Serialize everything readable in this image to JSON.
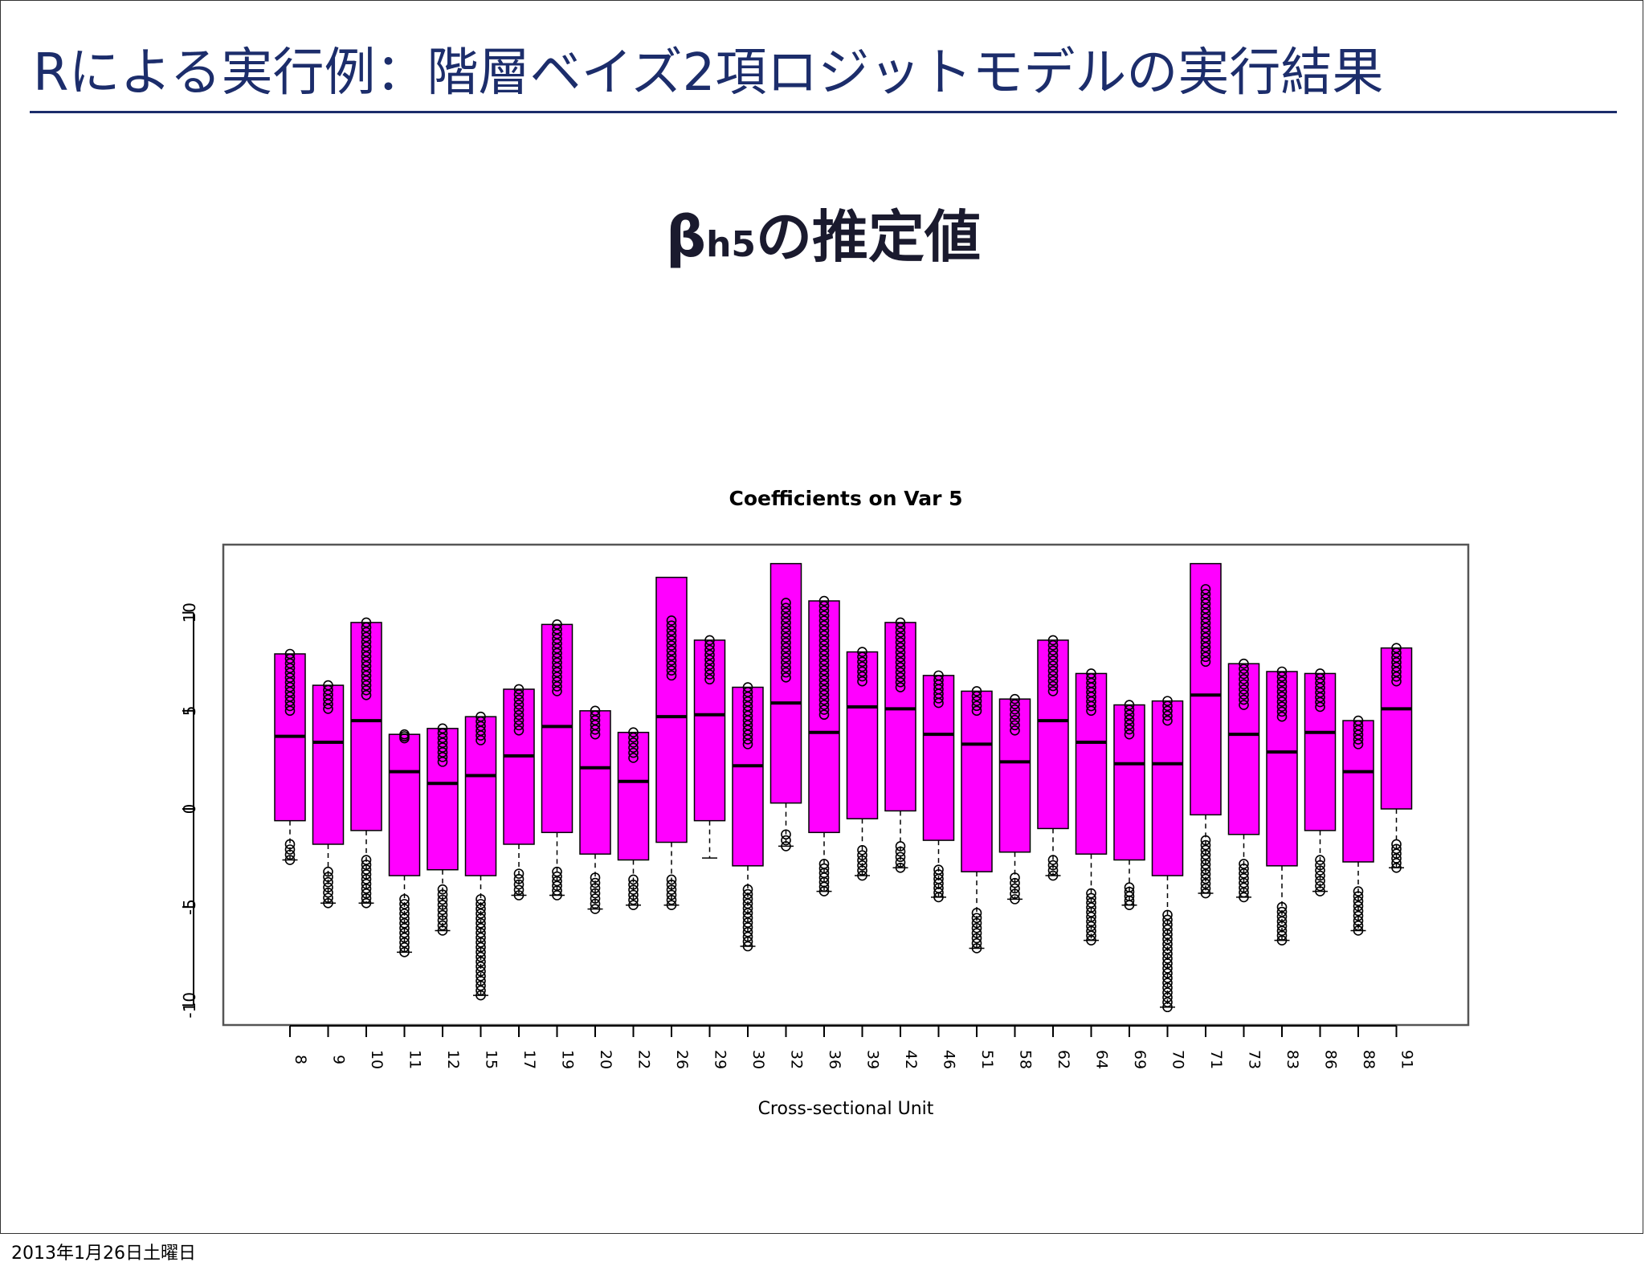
{
  "slide": {
    "title": "Rによる実行例：階層ベイズ2項ロジットモデルの実行結果",
    "subtitle_greek": "β",
    "subtitle_sub": "h5",
    "subtitle_rest": "の推定値",
    "footer_date": "2013年1月26日土曜日"
  },
  "colors": {
    "title": "#1c2d6b",
    "box_fill": "#ff00ff",
    "axis": "#000000"
  },
  "chart_data": {
    "type": "boxplot",
    "title": "Coefficients on Var 5",
    "xlabel": "Cross-sectional Unit",
    "ylabel": "",
    "ylim": [
      -11,
      13.5
    ],
    "yticks": [
      10,
      5,
      0,
      -5,
      -10
    ],
    "ytick_labels": [
      "10",
      "5",
      "0",
      "-5",
      "-10"
    ],
    "categories": [
      "8",
      "9",
      "10",
      "11",
      "12",
      "15",
      "17",
      "19",
      "20",
      "22",
      "26",
      "29",
      "30",
      "32",
      "36",
      "39",
      "42",
      "46",
      "51",
      "58",
      "62",
      "64",
      "69",
      "70",
      "71",
      "73",
      "83",
      "86",
      "88",
      "91"
    ],
    "q1": [
      -0.6,
      -1.8,
      -1.1,
      -3.4,
      -3.1,
      -3.4,
      -1.8,
      -1.2,
      -2.3,
      -2.6,
      -1.7,
      -0.6,
      -2.9,
      0.3,
      -1.2,
      -0.5,
      -0.1,
      -1.6,
      -3.2,
      -2.2,
      -1.0,
      -2.3,
      -2.6,
      -3.4,
      -0.3,
      -1.3,
      -2.9,
      -1.1,
      -2.7,
      0.0
    ],
    "median": [
      3.7,
      3.4,
      4.5,
      1.9,
      1.3,
      1.7,
      2.7,
      4.2,
      2.1,
      1.4,
      4.7,
      4.8,
      2.2,
      5.4,
      3.9,
      5.2,
      5.1,
      3.8,
      3.3,
      2.4,
      4.5,
      3.4,
      2.3,
      2.3,
      5.8,
      3.8,
      2.9,
      3.9,
      1.9,
      5.1
    ],
    "q3": [
      7.9,
      6.3,
      9.5,
      3.8,
      4.1,
      4.7,
      6.1,
      9.4,
      5.0,
      3.9,
      11.8,
      8.6,
      6.2,
      12.5,
      10.6,
      8.0,
      9.5,
      6.8,
      6.0,
      5.6,
      8.6,
      6.9,
      5.3,
      5.5,
      12.5,
      7.4,
      7.0,
      6.9,
      4.5,
      8.2
    ],
    "lower_whisker": [
      -2.6,
      -4.8,
      -4.8,
      -7.3,
      -6.2,
      -9.5,
      -4.4,
      -4.4,
      -5.1,
      -4.9,
      -4.9,
      -2.5,
      -7.0,
      -1.9,
      -4.2,
      -3.4,
      -3.0,
      -4.5,
      -7.1,
      -4.6,
      -3.4,
      -6.7,
      -4.9,
      -10.1,
      -4.3,
      -4.5,
      -6.7,
      -4.2,
      -6.2,
      -3.0
    ],
    "upper_whisker": [
      7.9,
      6.3,
      9.5,
      3.8,
      4.1,
      4.7,
      6.1,
      9.4,
      5.0,
      3.9,
      11.8,
      8.6,
      6.2,
      12.5,
      10.6,
      8.0,
      9.5,
      6.8,
      6.0,
      5.6,
      8.6,
      6.9,
      5.3,
      5.5,
      12.5,
      7.4,
      7.0,
      6.9,
      4.5,
      8.2
    ],
    "outliers_high_range": [
      [
        5.0,
        7.9
      ],
      [
        5.1,
        6.3
      ],
      [
        5.8,
        9.5
      ],
      [
        3.6,
        3.8
      ],
      [
        2.4,
        4.1
      ],
      [
        3.5,
        4.7
      ],
      [
        4.0,
        6.1
      ],
      [
        6.0,
        9.4
      ],
      [
        3.8,
        5.0
      ],
      [
        2.6,
        3.9
      ],
      [
        6.8,
        9.6
      ],
      [
        6.6,
        8.6
      ],
      [
        3.3,
        6.2
      ],
      [
        6.7,
        10.5
      ],
      [
        4.8,
        10.6
      ],
      [
        6.5,
        8.0
      ],
      [
        6.2,
        9.5
      ],
      [
        5.4,
        6.8
      ],
      [
        5.0,
        6.0
      ],
      [
        4.0,
        5.6
      ],
      [
        6.0,
        8.6
      ],
      [
        5.0,
        6.9
      ],
      [
        3.8,
        5.3
      ],
      [
        4.5,
        5.5
      ],
      [
        7.5,
        11.2
      ],
      [
        5.3,
        7.4
      ],
      [
        4.7,
        7.0
      ],
      [
        5.2,
        6.9
      ],
      [
        3.3,
        4.5
      ],
      [
        6.5,
        8.2
      ]
    ],
    "outliers_low_range": [
      [
        -2.6,
        -1.8
      ],
      [
        -4.8,
        -3.2
      ],
      [
        -4.8,
        -2.6
      ],
      [
        -7.3,
        -4.6
      ],
      [
        -6.2,
        -4.1
      ],
      [
        -9.5,
        -4.6
      ],
      [
        -4.4,
        -3.3
      ],
      [
        -4.4,
        -3.2
      ],
      [
        -5.1,
        -3.5
      ],
      [
        -4.9,
        -3.6
      ],
      [
        -4.9,
        -3.6
      ],
      [],
      [
        -7.0,
        -4.1
      ],
      [
        -1.9,
        -1.3
      ],
      [
        -4.2,
        -2.8
      ],
      [
        -3.4,
        -2.1
      ],
      [
        -3.0,
        -1.9
      ],
      [
        -4.5,
        -3.1
      ],
      [
        -7.1,
        -5.3
      ],
      [
        -4.6,
        -3.5
      ],
      [
        -3.4,
        -2.6
      ],
      [
        -6.7,
        -4.3
      ],
      [
        -4.9,
        -4.0
      ],
      [
        -10.1,
        -5.4
      ],
      [
        -4.3,
        -1.6
      ],
      [
        -4.5,
        -2.8
      ],
      [
        -6.7,
        -5.0
      ],
      [
        -4.2,
        -2.6
      ],
      [
        -6.2,
        -4.2
      ],
      [
        -3.0,
        -1.8
      ]
    ]
  }
}
